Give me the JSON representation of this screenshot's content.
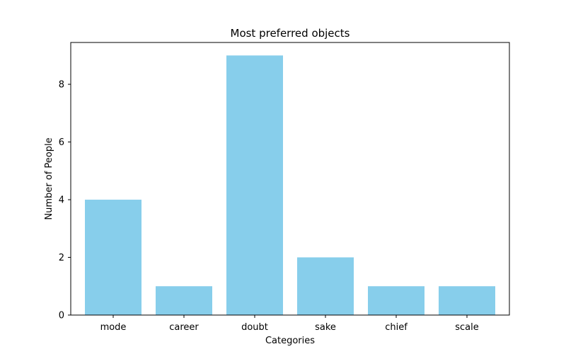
{
  "chart_data": {
    "type": "bar",
    "title": "Most preferred objects",
    "xlabel": "Categories",
    "ylabel": "Number of People",
    "categories": [
      "mode",
      "career",
      "doubt",
      "sake",
      "chief",
      "scale"
    ],
    "values": [
      4,
      1,
      9,
      2,
      1,
      1
    ],
    "yticks": [
      0,
      2,
      4,
      6,
      8
    ],
    "ylim": [
      0,
      9.45
    ],
    "bar_color": "#87ceeb",
    "grid": false,
    "legend": "none"
  }
}
